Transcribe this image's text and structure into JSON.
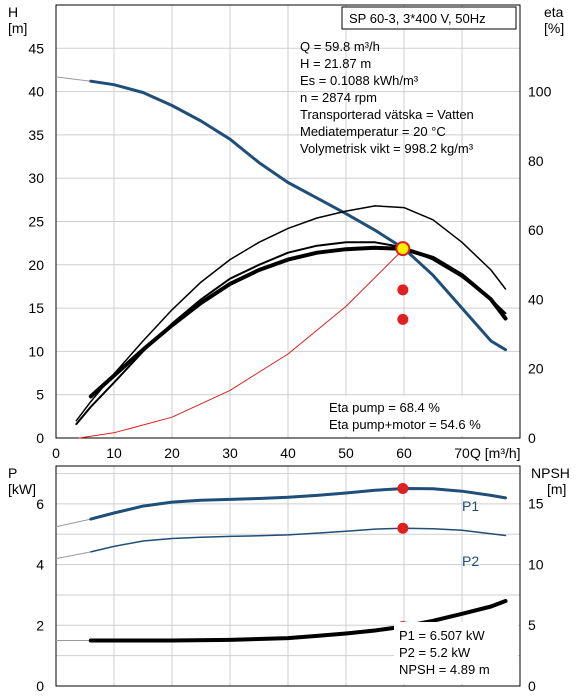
{
  "chart_data": [
    {
      "type": "line",
      "panel": "pump-curves",
      "title": "SP 60-3, 3*400 V, 50Hz",
      "xlabel": "Q [m³/h]",
      "xlim": [
        0,
        80
      ],
      "x_ticks": [
        "0",
        "10",
        "20",
        "30",
        "40",
        "50",
        "60",
        "70"
      ],
      "y_left": {
        "label_top": "H",
        "label_unit": "[m]",
        "lim": [
          0,
          50
        ],
        "ticks": [
          "0",
          "5",
          "10",
          "15",
          "20",
          "25",
          "30",
          "35",
          "40",
          "45"
        ]
      },
      "y_right": {
        "label_top": "eta",
        "label_unit": "[%]",
        "lim": [
          0,
          125
        ],
        "ticks": [
          "0",
          "20",
          "40",
          "60",
          "80",
          "100"
        ]
      },
      "grid": true,
      "series": [
        {
          "axis": "left",
          "color": "#1f4e79",
          "width": 3,
          "points": [
            [
              6,
              41.2
            ],
            [
              10,
              40.8
            ],
            [
              15,
              39.9
            ],
            [
              20,
              38.4
            ],
            [
              25,
              36.6
            ],
            [
              30,
              34.5
            ],
            [
              35,
              31.8
            ],
            [
              40,
              29.5
            ],
            [
              45,
              27.7
            ],
            [
              50,
              25.9
            ],
            [
              55,
              24.0
            ],
            [
              60,
              21.87
            ],
            [
              65,
              18.8
            ],
            [
              70,
              15.0
            ],
            [
              75,
              11.2
            ],
            [
              77.5,
              10.2
            ]
          ],
          "dashed_extension": [
            [
              0,
              41.7
            ],
            [
              6,
              41.2
            ]
          ]
        },
        {
          "axis": "right",
          "color": "#000000",
          "width": 2,
          "points": [
            [
              3.5,
              4.0
            ],
            [
              6,
              9
            ],
            [
              10,
              16
            ],
            [
              15,
              25
            ],
            [
              20,
              33
            ],
            [
              25,
              40
            ],
            [
              30,
              46
            ],
            [
              35,
              50
            ],
            [
              40,
              53.5
            ],
            [
              45,
              55.5
            ],
            [
              50,
              56.5
            ],
            [
              55,
              56.5
            ],
            [
              60,
              55
            ],
            [
              65,
              51.5
            ],
            [
              70,
              46.5
            ],
            [
              75,
              40
            ],
            [
              77.5,
              36
            ]
          ]
        },
        {
          "axis": "right",
          "color": "#000000",
          "width": 4,
          "points": [
            [
              6,
              12
            ],
            [
              10,
              18
            ],
            [
              15,
              25.5
            ],
            [
              20,
              32.5
            ],
            [
              25,
              39
            ],
            [
              30,
              44.5
            ],
            [
              35,
              48.5
            ],
            [
              40,
              51.5
            ],
            [
              45,
              53.5
            ],
            [
              50,
              54.5
            ],
            [
              55,
              54.9
            ],
            [
              60,
              54.6
            ],
            [
              65,
              52
            ],
            [
              70,
              47
            ],
            [
              75,
              40
            ],
            [
              77.5,
              34.5
            ]
          ]
        },
        {
          "axis": "right",
          "color": "#000000",
          "width": 1.5,
          "points": [
            [
              3.5,
              5
            ],
            [
              6,
              10.5
            ],
            [
              10,
              18.5
            ],
            [
              15,
              28
            ],
            [
              20,
              37
            ],
            [
              25,
              45
            ],
            [
              30,
              51.5
            ],
            [
              35,
              56.5
            ],
            [
              40,
              60.5
            ],
            [
              45,
              63.5
            ],
            [
              50,
              65.5
            ],
            [
              55,
              67
            ],
            [
              60,
              66.5
            ],
            [
              65,
              63
            ],
            [
              70,
              56.5
            ],
            [
              75,
              48.5
            ],
            [
              77.5,
              43
            ]
          ]
        },
        {
          "axis": "left",
          "color": "#e02020",
          "width": 1,
          "points": [
            [
              4,
              0
            ],
            [
              10,
              0.6
            ],
            [
              20,
              2.4
            ],
            [
              30,
              5.5
            ],
            [
              40,
              9.7
            ],
            [
              50,
              15.2
            ],
            [
              60,
              21.87
            ]
          ]
        }
      ],
      "operating_point": {
        "x": 59.8,
        "y": 21.87,
        "fill": "#ffee00",
        "stroke": "#e02020"
      },
      "markers": [
        {
          "x": 59.8,
          "y": 17.1,
          "color": "#e02020"
        },
        {
          "x": 59.8,
          "y": 13.7,
          "color": "#e02020"
        }
      ],
      "info_box": [
        "Q = 59.8 m³/h",
        "H = 21.87 m",
        "Es = 0.1088 kWh/m³",
        "n = 2874 rpm",
        "Transporterad vätska = Vatten",
        "Mediatemperatur = 20 °C",
        "Volymetrisk vikt = 998.2 kg/m³"
      ],
      "efficiency_box": [
        "Eta pump = 68.4 %",
        "Eta pump+motor = 54.6 %"
      ]
    },
    {
      "type": "line",
      "panel": "power-npsh",
      "xlim": [
        0,
        80
      ],
      "y_left": {
        "label_top": "P",
        "label_unit": "[kW]",
        "lim": [
          0,
          7.25
        ],
        "ticks": [
          "0",
          "2",
          "4",
          "6"
        ]
      },
      "y_right": {
        "label_top": "NPSH",
        "label_unit": "[m]",
        "lim": [
          0,
          18.1
        ],
        "ticks": [
          "0",
          "5",
          "10",
          "15"
        ]
      },
      "grid": true,
      "series": [
        {
          "name": "P1",
          "axis": "left",
          "color": "#1f4e79",
          "width": 3,
          "points": [
            [
              6,
              5.5
            ],
            [
              10,
              5.7
            ],
            [
              15,
              5.93
            ],
            [
              20,
              6.06
            ],
            [
              25,
              6.12
            ],
            [
              30,
              6.15
            ],
            [
              35,
              6.18
            ],
            [
              40,
              6.22
            ],
            [
              45,
              6.28
            ],
            [
              50,
              6.36
            ],
            [
              55,
              6.45
            ],
            [
              60,
              6.507
            ],
            [
              65,
              6.5
            ],
            [
              70,
              6.42
            ],
            [
              75,
              6.28
            ],
            [
              77.5,
              6.2
            ]
          ],
          "dashed_extension": [
            [
              0,
              5.25
            ],
            [
              6,
              5.5
            ]
          ]
        },
        {
          "name": "P2",
          "axis": "left",
          "color": "#1f4e79",
          "width": 1.5,
          "points": [
            [
              6,
              4.42
            ],
            [
              10,
              4.6
            ],
            [
              15,
              4.78
            ],
            [
              20,
              4.86
            ],
            [
              25,
              4.9
            ],
            [
              30,
              4.93
            ],
            [
              35,
              4.95
            ],
            [
              40,
              4.98
            ],
            [
              45,
              5.04
            ],
            [
              50,
              5.1
            ],
            [
              55,
              5.17
            ],
            [
              60,
              5.2
            ],
            [
              65,
              5.18
            ],
            [
              70,
              5.13
            ],
            [
              75,
              5.02
            ],
            [
              77.5,
              4.96
            ]
          ],
          "dashed_extension": [
            [
              0,
              4.2
            ],
            [
              6,
              4.42
            ]
          ]
        },
        {
          "name": "NPSH",
          "axis": "left",
          "color": "#000000",
          "width": 4,
          "points": [
            [
              6,
              1.5
            ],
            [
              10,
              1.5
            ],
            [
              20,
              1.5
            ],
            [
              30,
              1.52
            ],
            [
              40,
              1.58
            ],
            [
              45,
              1.65
            ],
            [
              50,
              1.73
            ],
            [
              55,
              1.83
            ],
            [
              60,
              1.96
            ],
            [
              65,
              2.15
            ],
            [
              70,
              2.38
            ],
            [
              75,
              2.62
            ],
            [
              77.5,
              2.8
            ]
          ],
          "dashed_extension": [
            [
              0,
              1.5
            ],
            [
              6,
              1.5
            ]
          ]
        }
      ],
      "markers": [
        {
          "x": 59.8,
          "y": 6.507,
          "color": "#e02020"
        },
        {
          "x": 59.8,
          "y": 5.2,
          "color": "#e02020"
        },
        {
          "x": 59.8,
          "y": 1.96,
          "color": "#e02020"
        }
      ],
      "info_box": [
        "P1 = 6.507 kW",
        "P2 = 5.2 kW",
        "NPSH = 4.89 m"
      ]
    }
  ]
}
